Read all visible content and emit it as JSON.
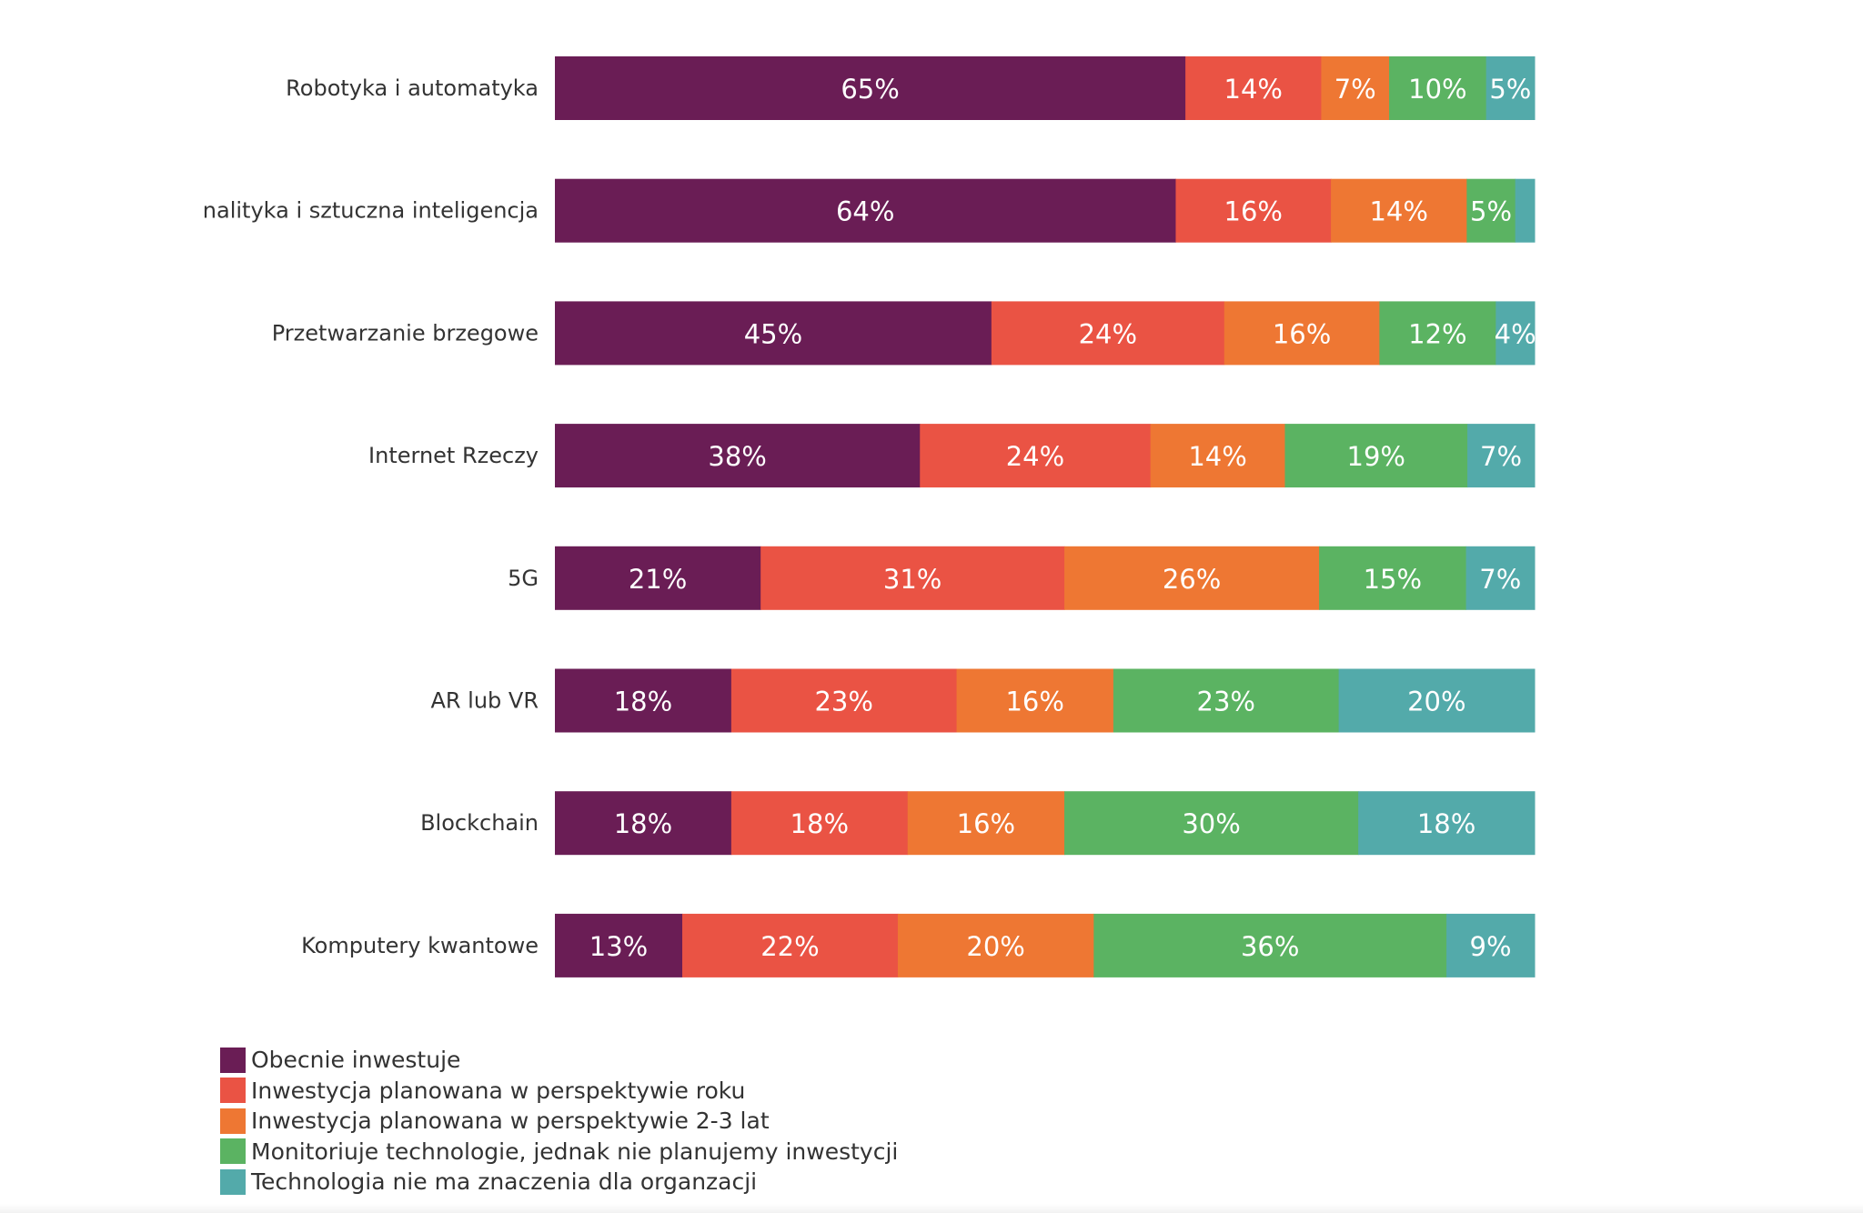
{
  "chart_data": {
    "type": "bar",
    "orientation": "horizontal",
    "stacked": true,
    "categories": [
      "Robotyka i automatyka",
      "nalityka i sztuczna inteligencja",
      "Przetwarzanie brzegowe",
      "Internet Rzeczy",
      "5G",
      "AR lub VR",
      "Blockchain",
      "Komputery kwantowe"
    ],
    "series": [
      {
        "name": "Obecnie inwestuje",
        "color": "#6a1d55",
        "values": [
          65,
          64,
          45,
          38,
          21,
          18,
          18,
          13
        ]
      },
      {
        "name": "Inwestycja planowana w perspektywie roku",
        "color": "#ea5344",
        "values": [
          14,
          16,
          24,
          24,
          31,
          23,
          18,
          22
        ]
      },
      {
        "name": "Inwestycja planowana w perspektywie 2-3 lat",
        "color": "#ee7733",
        "values": [
          7,
          14,
          16,
          14,
          26,
          16,
          16,
          20
        ]
      },
      {
        "name": "Monitoriuje technologie, jednak nie planujemy inwestycji",
        "color": "#5bb362",
        "values": [
          10,
          5,
          12,
          19,
          15,
          23,
          30,
          36
        ]
      },
      {
        "name": "Technologia nie ma znaczenia dla organzacji",
        "color": "#53aaaa",
        "values": [
          5,
          2,
          4,
          7,
          7,
          20,
          18,
          9
        ]
      }
    ],
    "labels": [
      [
        "65%",
        "14%",
        "7%",
        "10%",
        "5%"
      ],
      [
        "64%",
        "16%",
        "14%",
        "5%",
        ""
      ],
      [
        "45%",
        "24%",
        "16%",
        "12%",
        "4%"
      ],
      [
        "38%",
        "24%",
        "14%",
        "19%",
        "7%"
      ],
      [
        "21%",
        "31%",
        "26%",
        "15%",
        "7%"
      ],
      [
        "18%",
        "23%",
        "16%",
        "23%",
        "20%"
      ],
      [
        "18%",
        "18%",
        "16%",
        "30%",
        "18%"
      ],
      [
        "13%",
        "22%",
        "20%",
        "36%",
        "9%"
      ]
    ],
    "xlim": [
      0,
      100
    ],
    "axes_visible": false,
    "grid": false,
    "legend_position": "bottom-left"
  }
}
